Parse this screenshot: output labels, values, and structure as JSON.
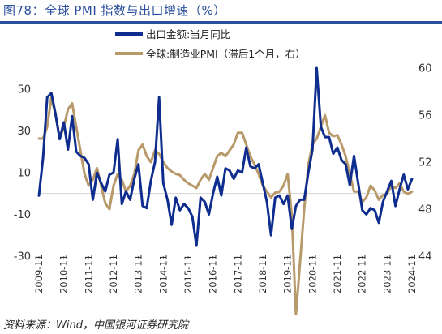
{
  "title": "图78：全球 PMI 指数与出口增速（%）",
  "source": "资料来源：Wind，中国银河证券研究院",
  "colors": {
    "export": "#0e2d8f",
    "pmi": "#b8996a",
    "title": "#2a4f9c"
  },
  "chart_data": {
    "type": "line",
    "title": "图78：全球 PMI 指数与出口增速（%）",
    "xlabel": "",
    "ylabel": "",
    "x_ticks": [
      "2009-11",
      "2010-11",
      "2011-11",
      "2012-11",
      "2013-11",
      "2014-11",
      "2015-11",
      "2016-11",
      "2017-11",
      "2018-11",
      "2019-11",
      "2020-11",
      "2021-11",
      "2022-11",
      "2023-11",
      "2024-11"
    ],
    "y_left": {
      "ticks": [
        50,
        30,
        10,
        -10,
        -30
      ],
      "range": [
        -30,
        60
      ]
    },
    "y_right": {
      "ticks": [
        60,
        56,
        52,
        48,
        44
      ],
      "range": [
        44,
        60
      ]
    },
    "legend": {
      "position": "top",
      "entries": [
        "出口金额:当月同比",
        "全球:制造业PMI（滞后1个月，右）"
      ]
    },
    "series": [
      {
        "name": "出口金额:当月同比",
        "axis": "left",
        "x": [
          2009.833,
          2010.0,
          2010.167,
          2010.333,
          2010.5,
          2010.667,
          2010.833,
          2011.0,
          2011.167,
          2011.333,
          2011.5,
          2011.667,
          2011.833,
          2012.0,
          2012.167,
          2012.333,
          2012.5,
          2012.667,
          2012.833,
          2013.0,
          2013.167,
          2013.333,
          2013.5,
          2013.667,
          2013.833,
          2014.0,
          2014.167,
          2014.333,
          2014.5,
          2014.667,
          2014.833,
          2015.0,
          2015.167,
          2015.333,
          2015.5,
          2015.667,
          2015.833,
          2016.0,
          2016.167,
          2016.333,
          2016.5,
          2016.667,
          2016.833,
          2017.0,
          2017.167,
          2017.333,
          2017.5,
          2017.667,
          2017.833,
          2018.0,
          2018.167,
          2018.333,
          2018.5,
          2018.667,
          2018.833,
          2019.0,
          2019.167,
          2019.333,
          2019.5,
          2019.667,
          2019.833,
          2020.0,
          2020.167,
          2020.333,
          2020.5,
          2020.667,
          2020.833,
          2021.0,
          2021.167,
          2021.333,
          2021.5,
          2021.667,
          2021.833,
          2022.0,
          2022.167,
          2022.333,
          2022.5,
          2022.667,
          2022.833,
          2023.0,
          2023.167,
          2023.333,
          2023.5,
          2023.667,
          2023.833,
          2024.0,
          2024.167,
          2024.333,
          2024.5,
          2024.667,
          2024.833
        ],
        "y": [
          -1,
          17,
          46,
          48,
          38,
          26,
          34,
          21,
          37,
          20,
          18,
          17,
          14,
          -3,
          10,
          5,
          1,
          9,
          10,
          26,
          -5,
          1,
          -3,
          7,
          14,
          -6,
          -7,
          6,
          15,
          46,
          5,
          -3,
          -15,
          -2,
          -8,
          -5,
          -7,
          -11,
          -25,
          -2,
          -4,
          -10,
          0,
          8,
          -1,
          12,
          11,
          7,
          11,
          10,
          22,
          13,
          12,
          14,
          5,
          -4,
          -20,
          -2,
          -1,
          -5,
          -1,
          -17,
          -6,
          -3,
          -3,
          10,
          21,
          60,
          32,
          27,
          27,
          19,
          22,
          16,
          14,
          4,
          18,
          5,
          -8,
          -10,
          -7,
          -8,
          -14,
          -4,
          1,
          6,
          -6,
          2,
          9,
          2,
          7
        ]
      },
      {
        "name": "全球:制造业PMI（滞后1个月，右）",
        "axis": "right",
        "x": [
          2009.833,
          2010.0,
          2010.167,
          2010.333,
          2010.5,
          2010.667,
          2010.833,
          2011.0,
          2011.167,
          2011.333,
          2011.5,
          2011.667,
          2011.833,
          2012.0,
          2012.167,
          2012.333,
          2012.5,
          2012.667,
          2012.833,
          2013.0,
          2013.167,
          2013.333,
          2013.5,
          2013.667,
          2013.833,
          2014.0,
          2014.167,
          2014.333,
          2014.5,
          2014.667,
          2014.833,
          2015.0,
          2015.167,
          2015.333,
          2015.5,
          2015.667,
          2015.833,
          2016.0,
          2016.167,
          2016.333,
          2016.5,
          2016.667,
          2016.833,
          2017.0,
          2017.167,
          2017.333,
          2017.5,
          2017.667,
          2017.833,
          2018.0,
          2018.167,
          2018.333,
          2018.5,
          2018.667,
          2018.833,
          2019.0,
          2019.167,
          2019.333,
          2019.5,
          2019.667,
          2019.833,
          2020.0,
          2020.167,
          2020.333,
          2020.5,
          2020.667,
          2020.833,
          2021.0,
          2021.167,
          2021.333,
          2021.5,
          2021.667,
          2021.833,
          2022.0,
          2022.167,
          2022.333,
          2022.5,
          2022.667,
          2022.833,
          2023.0,
          2023.167,
          2023.333,
          2023.5,
          2023.667,
          2023.833,
          2024.0,
          2024.167,
          2024.333,
          2024.5,
          2024.667,
          2024.833
        ],
        "y": [
          54,
          54,
          55,
          57.5,
          56,
          54,
          55,
          56.5,
          57,
          55,
          53,
          51,
          50,
          50.5,
          51.5,
          50,
          48.5,
          48,
          50,
          51,
          50.5,
          49.5,
          50,
          51,
          53,
          53.5,
          52.5,
          52,
          53,
          52.7,
          52,
          51.5,
          51.2,
          51,
          50.9,
          50.5,
          50.2,
          50,
          49.8,
          50.5,
          51,
          50.5,
          51.5,
          52.5,
          52.8,
          52.5,
          53,
          53.5,
          54.5,
          54.5,
          53.5,
          52.5,
          51.8,
          51,
          50,
          49.5,
          49,
          49.4,
          49.5,
          50,
          51,
          47.5,
          39,
          43.5,
          48,
          51.8,
          53.5,
          54,
          55,
          56,
          54.5,
          54.2,
          54.3,
          53.5,
          52.5,
          51,
          49.5,
          49.5,
          48.6,
          49,
          50,
          49.6,
          48.8,
          49.2,
          49.3,
          50,
          49.8,
          50.2,
          49.5,
          49.3,
          49.5
        ]
      }
    ]
  }
}
